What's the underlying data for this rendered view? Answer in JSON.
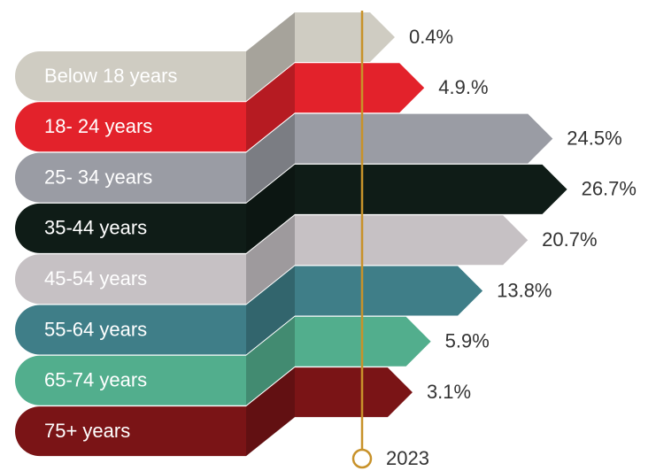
{
  "chart_data": {
    "type": "bar",
    "categories": [
      "Below 18 years",
      "18- 24 years",
      "25- 34 years",
      "35-44 years",
      "45-54 years",
      "55-64 years",
      "65-74 years",
      "75+ years"
    ],
    "values": [
      0.4,
      4.9,
      24.5,
      26.7,
      20.7,
      13.8,
      5.9,
      3.1
    ],
    "value_labels": [
      "0.4%",
      "4.9.%",
      "24.5%",
      "26.7%",
      "20.7%",
      "13.8%",
      "5.9%",
      "3.1%"
    ],
    "colors": [
      "#cfccc2",
      "#e3222b",
      "#9a9ca4",
      "#0f1c17",
      "#c6c1c4",
      "#3f7e88",
      "#52ae8d",
      "#7a1416"
    ],
    "annotation": "2023"
  }
}
